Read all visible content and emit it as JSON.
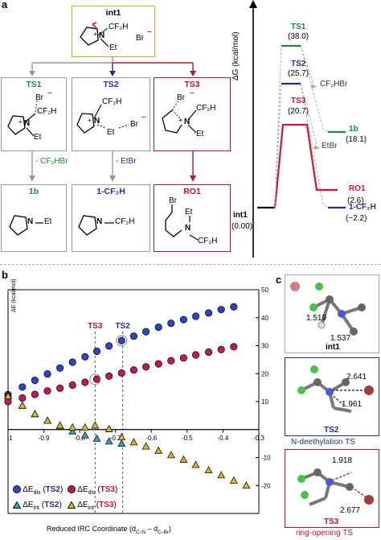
{
  "panel_a": {
    "letter": "a",
    "int1_title": "int1",
    "int1_labels": {
      "n": "N",
      "plus": "+",
      "cf2h": "CF₂H",
      "et": "Et",
      "br": "Br",
      "minus": "−"
    },
    "ts_boxes": [
      {
        "title": "TS1",
        "labels": [
          "Br",
          "−",
          "CF₂H",
          "+",
          "N",
          "Et"
        ]
      },
      {
        "title": "TS2",
        "labels": [
          "CF₂H",
          "+",
          "N",
          "Br",
          "−",
          "Et"
        ]
      },
      {
        "title": "TS3",
        "labels": [
          "Br",
          "−",
          "CF₂H",
          "+",
          "N",
          "Et"
        ]
      }
    ],
    "arrows": [
      {
        "label": "- CF₂HBr"
      },
      {
        "label": "- EtBr"
      }
    ],
    "products": [
      {
        "title": "1b",
        "labels": [
          "N",
          "Et"
        ]
      },
      {
        "title": "1-CF₂H",
        "labels": [
          "N",
          "CF₂H"
        ]
      },
      {
        "title": "RO1",
        "labels": [
          "Br",
          "Et",
          "N",
          "CF₂H"
        ]
      }
    ],
    "energy_diagram": {
      "axis_label": "ΔG (kcal/mol)",
      "levels": [
        {
          "name": "int1",
          "value": "(0.00)"
        },
        {
          "name": "TS1",
          "value": "(38.0)",
          "color": "#1a8a3a"
        },
        {
          "name": "TS2",
          "value": "(25.7)",
          "color": "#1f2f9c"
        },
        {
          "name": "TS3",
          "value": "(20.7)",
          "color": "#d0142f"
        },
        {
          "name": "1b",
          "value": "(18.1)",
          "color": "#1a8a3a"
        },
        {
          "name": "RO1",
          "value": "(2.6)",
          "color": "#d0142f"
        },
        {
          "name": "1-CF₂H",
          "value": "(−2.2)",
          "color": "#1f2f9c"
        }
      ],
      "byproducts": [
        "CF₂HBr",
        "EtBr"
      ]
    }
  },
  "panel_b": {
    "letter": "b"
  },
  "panel_c": {
    "letter": "c",
    "boxes": [
      {
        "name": "int1",
        "distances": [
          "1.519",
          "1.537"
        ],
        "caption": ""
      },
      {
        "name": "TS2",
        "distances": [
          "2.641",
          "1.961"
        ],
        "caption": "N-deethylation  TS"
      },
      {
        "name": "TS3",
        "distances": [
          "1.918",
          "2.677"
        ],
        "caption": "ring-opening  TS"
      }
    ]
  },
  "chart_data": {
    "type": "scatter",
    "xlabel": "Reduced IRC Coordinate (d",
    "xlabel_sub1": "C–N",
    "xlabel_mid": " – d",
    "xlabel_sub2": "C–Br",
    "xlabel_end": ")",
    "left_ylabel": "ΔE (kcal/mol)",
    "xlim": [
      -1.0,
      -0.3
    ],
    "ylim": [
      -30,
      50
    ],
    "xticks": [
      -1.0,
      -0.9,
      -0.8,
      -0.7,
      -0.6,
      -0.5,
      -0.4,
      -0.3
    ],
    "xtick_labels": [
      "-1",
      "-0.9",
      "-0.8",
      "-0.7",
      "-0.6",
      "-0.5",
      "-0.4",
      "-0.3"
    ],
    "yticks": [
      -20,
      -10,
      10,
      20,
      30,
      40,
      50
    ],
    "ytick_labels": [
      "-20",
      "-10",
      "10",
      "20",
      "30",
      "40",
      "50"
    ],
    "markers": [
      {
        "label": "TS3",
        "x": -0.757,
        "color": "#c4112f"
      },
      {
        "label": "TS2",
        "x": -0.68,
        "color": "#1f2f9c"
      }
    ],
    "series": [
      {
        "name": "ΔE_dis (TS2)",
        "marker": "circle",
        "color": "#2a45c8",
        "points": [
          [
            -1.0,
            12.5
          ],
          [
            -0.96,
            15.2
          ],
          [
            -0.925,
            17.6
          ],
          [
            -0.89,
            19.9
          ],
          [
            -0.855,
            22.0
          ],
          [
            -0.82,
            24.1
          ],
          [
            -0.785,
            26.0
          ],
          [
            -0.752,
            28.0
          ],
          [
            -0.718,
            29.9
          ],
          [
            -0.683,
            31.8
          ],
          [
            -0.649,
            33.4
          ],
          [
            -0.615,
            35.0
          ],
          [
            -0.58,
            36.6
          ],
          [
            -0.545,
            38.0
          ],
          [
            -0.51,
            39.3
          ],
          [
            -0.476,
            40.5
          ],
          [
            -0.44,
            41.7
          ],
          [
            -0.405,
            42.9
          ],
          [
            -0.37,
            43.9
          ]
        ]
      },
      {
        "name": "ΔE_dis (TS3)",
        "marker": "circle",
        "color": "#c0185a",
        "points": [
          [
            -1.0,
            10.0
          ],
          [
            -0.96,
            11.3
          ],
          [
            -0.925,
            12.6
          ],
          [
            -0.89,
            13.8
          ],
          [
            -0.855,
            14.8
          ],
          [
            -0.82,
            15.9
          ],
          [
            -0.785,
            16.9
          ],
          [
            -0.752,
            18.0
          ],
          [
            -0.718,
            19.1
          ],
          [
            -0.683,
            20.2
          ],
          [
            -0.649,
            21.3
          ],
          [
            -0.615,
            22.4
          ],
          [
            -0.58,
            23.5
          ],
          [
            -0.545,
            24.6
          ],
          [
            -0.51,
            25.6
          ],
          [
            -0.476,
            26.7
          ],
          [
            -0.44,
            27.7
          ],
          [
            -0.405,
            28.6
          ],
          [
            -0.37,
            29.6
          ]
        ]
      },
      {
        "name": "ΔE_int (TS2)",
        "marker": "triangle",
        "color": "#2fa6b8",
        "points": [
          [
            -1.0,
            12.5
          ],
          [
            -0.96,
            8.6
          ],
          [
            -0.925,
            5.6
          ],
          [
            -0.89,
            3.2
          ],
          [
            -0.855,
            1.1
          ],
          [
            -0.82,
            -0.6
          ],
          [
            -0.785,
            -2.0
          ],
          [
            -0.752,
            -3.2
          ],
          [
            -0.718,
            -4.2
          ],
          [
            -0.683,
            -5.0
          ]
        ]
      },
      {
        "name": "ΔE_int (TS3)",
        "marker": "triangle",
        "color": "#e8b21c",
        "points": [
          [
            -1.0,
            12.0
          ],
          [
            -0.96,
            8.6
          ],
          [
            -0.925,
            5.6
          ],
          [
            -0.89,
            3.2
          ],
          [
            -0.855,
            1.5
          ],
          [
            -0.82,
            0.8
          ],
          [
            -0.785,
            0.8
          ],
          [
            -0.757,
            1.5
          ],
          [
            -0.718,
            0.2
          ],
          [
            -0.683,
            -2.7
          ],
          [
            -0.649,
            -4.5
          ],
          [
            -0.615,
            -6.0
          ],
          [
            -0.58,
            -7.5
          ],
          [
            -0.545,
            -9.1
          ],
          [
            -0.51,
            -10.7
          ],
          [
            -0.476,
            -12.6
          ],
          [
            -0.44,
            -14.5
          ],
          [
            -0.405,
            -16.3
          ],
          [
            -0.37,
            -18.2
          ],
          [
            -0.335,
            -20.0
          ]
        ]
      }
    ],
    "legend": [
      {
        "delta": "ΔE",
        "sub": "dis",
        "tag": "TS2",
        "marker": "circle",
        "color": "#2a45c8"
      },
      {
        "delta": "ΔE",
        "sub": "dis",
        "tag": "TS3",
        "marker": "circle",
        "color": "#c0185a"
      },
      {
        "delta": "ΔE",
        "sub": "int",
        "tag": "TS2",
        "marker": "triangle",
        "color": "#2fa6b8"
      },
      {
        "delta": "ΔE",
        "sub": "int",
        "tag": "TS3",
        "marker": "triangle",
        "color": "#e8b21c"
      }
    ]
  }
}
